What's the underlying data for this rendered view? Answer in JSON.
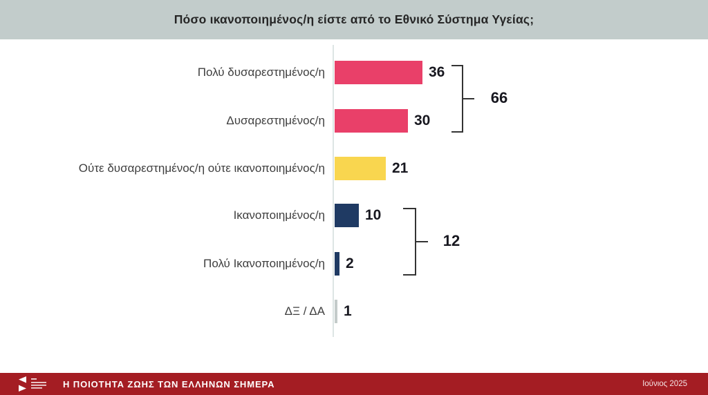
{
  "header": {
    "title": "Πόσο ικανοποιημένος/η είστε από το Εθνικό Σύστημα Υγείας;"
  },
  "chart_data": {
    "type": "bar",
    "orientation": "horizontal",
    "title": "Πόσο ικανοποιημένος/η είστε από το Εθνικό Σύστημα Υγείας;",
    "categories": [
      "Πολύ δυσαρεστημένος/η",
      "Δυσαρεστημένος/η",
      "Ούτε δυσαρεστημένος/η ούτε ικανοποιημένος/η",
      "Ικανοποιημένος/η",
      "Πολύ Ικανοποιημένος/η",
      "ΔΞ / ΔΑ"
    ],
    "values": [
      36,
      30,
      21,
      10,
      2,
      1
    ],
    "bar_colors": [
      "#e94069",
      "#e94069",
      "#f9d64f",
      "#1f3a63",
      "#1f3a63",
      "#c4cbca"
    ],
    "value_labels": [
      "36",
      "30",
      "21",
      "10",
      "2",
      "1"
    ],
    "groups": [
      {
        "label": "66",
        "sum": 66,
        "from_index": 0,
        "to_index": 1
      },
      {
        "label": "12",
        "sum": 12,
        "from_index": 3,
        "to_index": 4
      }
    ],
    "xlim": [
      0,
      36
    ],
    "grid": false,
    "legend": false,
    "colors": {
      "negative": "#e94069",
      "neutral": "#f9d64f",
      "positive": "#1f3a63",
      "dk_da": "#c4cbca",
      "header_band": "#c2cccb",
      "footer_band": "#a41d23",
      "axis": "#dde5e4"
    }
  },
  "footer": {
    "title": "Η ΠΟΙΟΤΗΤΑ ΖΩΗΣ ΤΩΝ ΕΛΛΗΝΩΝ ΣΗΜΕΡΑ",
    "date": "Ιούνιος 2025"
  }
}
